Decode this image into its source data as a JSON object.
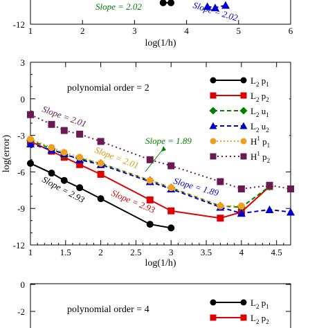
{
  "chart_data": [
    {
      "type": "line",
      "panel": "top (partially visible)",
      "xlabel": "log(1/h)",
      "xlim": [
        1,
        6
      ],
      "x_ticks": [
        "1",
        "2",
        "3",
        "4",
        "5",
        "6"
      ],
      "y_ticks": [
        "-12"
      ],
      "annotations": [
        {
          "text": "Slope = 2.02",
          "color": "#008000"
        },
        {
          "text": "Slope = 2.02",
          "color": "#0000cc"
        }
      ],
      "series": [
        {
          "color": "#000000",
          "x": [
            3.55,
            3.7
          ],
          "y": [
            -10.2,
            -10.2
          ]
        },
        {
          "color": "#0000cc",
          "x": [
            4.4,
            4.55,
            4.75
          ],
          "y": [
            -10.5,
            -10.6,
            -10.4
          ]
        }
      ]
    },
    {
      "type": "line",
      "panel": "middle",
      "title": "polynomial order = 2",
      "xlabel": "log(1/h)",
      "ylabel": "log(error)",
      "xlim": [
        1,
        4.7
      ],
      "ylim": [
        -12,
        3
      ],
      "x_ticks": [
        "1",
        "1.5",
        "2",
        "2.5",
        "3",
        "3.5",
        "4",
        "4.5"
      ],
      "y_ticks": [
        "3",
        "0",
        "-3",
        "-6",
        "-9",
        "-12"
      ],
      "legend_position": "right",
      "legend": [
        {
          "base": "L",
          "sub": "2",
          "mid": " p",
          "sup": "",
          "sub2": "1"
        },
        {
          "base": "L",
          "sub": "2",
          "mid": " p",
          "sup": "",
          "sub2": "2"
        },
        {
          "base": "L",
          "sub": "2",
          "mid": " u",
          "sup": "",
          "sub2": "1"
        },
        {
          "base": "L",
          "sub": "2",
          "mid": " u",
          "sup": "",
          "sub2": "2"
        },
        {
          "base": "H",
          "sub": "",
          "mid": " p",
          "sup": "1",
          "sub2": "1"
        },
        {
          "base": "H",
          "sub": "",
          "mid": " p",
          "sup": "1",
          "sub2": "2"
        }
      ],
      "annotations": [
        {
          "text": "Slope = 2.01",
          "color": "#5a1a4a"
        },
        {
          "text": "Slope = 2.93",
          "color": "#000000"
        },
        {
          "text": "Slope = 1.89",
          "color": "#008000"
        },
        {
          "text": "Slope = 2.01",
          "color": "#d49a00"
        },
        {
          "text": "Slope = 2.93",
          "color": "#cc0000"
        },
        {
          "text": "Slope = 1.89",
          "color": "#0000cc"
        }
      ],
      "series": [
        {
          "name": "L2 p1",
          "color": "#000000",
          "marker": "circle",
          "dash": "",
          "x": [
            1.0,
            1.3,
            1.48,
            1.7,
            2.0,
            2.7,
            3.0
          ],
          "y": [
            -5.3,
            -6.1,
            -6.7,
            -7.3,
            -8.2,
            -10.3,
            -10.6
          ]
        },
        {
          "name": "L2 p2",
          "color": "#dd0000",
          "marker": "square",
          "dash": "",
          "x": [
            1.0,
            1.3,
            1.48,
            1.7,
            2.0,
            2.7,
            3.0,
            3.7,
            4.0,
            4.4
          ],
          "y": [
            -3.5,
            -4.3,
            -4.8,
            -5.4,
            -6.2,
            -8.3,
            -9.2,
            -9.8,
            -9.3,
            -7.2
          ]
        },
        {
          "name": "L2 u1",
          "color": "#008000",
          "marker": "diamond",
          "dash": "6,4",
          "x": [
            1.0,
            1.3,
            1.48,
            1.7,
            2.0,
            2.7,
            3.0,
            3.7,
            4.0,
            4.4
          ],
          "y": [
            -3.4,
            -4.1,
            -4.6,
            -4.9,
            -5.3,
            -6.7,
            -7.3,
            -8.8,
            -8.9,
            -7.2
          ]
        },
        {
          "name": "L2 u2",
          "color": "#0000cc",
          "marker": "triangle",
          "dash": "6,4",
          "x": [
            1.0,
            1.3,
            1.48,
            1.7,
            2.0,
            2.7,
            3.0,
            3.7,
            4.0,
            4.4,
            4.7
          ],
          "y": [
            -3.7,
            -4.2,
            -4.5,
            -5.0,
            -5.4,
            -6.8,
            -7.4,
            -8.9,
            -9.4,
            -9.1,
            -9.3
          ]
        },
        {
          "name": "H1 p1",
          "color": "#f0a020",
          "marker": "circle",
          "dash": "2,3",
          "x": [
            1.0,
            1.3,
            1.48,
            1.7,
            2.0,
            2.7,
            3.0,
            3.7,
            4.0
          ],
          "y": [
            -3.3,
            -4.0,
            -4.4,
            -4.8,
            -5.3,
            -6.7,
            -7.3,
            -8.8,
            -8.8
          ]
        },
        {
          "name": "H1 p2",
          "color": "#6a1a50",
          "marker": "square",
          "dash": "2,4",
          "x": [
            1.0,
            1.3,
            1.48,
            1.7,
            2.0,
            2.7,
            3.0,
            3.7,
            4.0,
            4.4,
            4.7
          ],
          "y": [
            -1.3,
            -2.1,
            -2.6,
            -2.9,
            -3.5,
            -5.0,
            -5.5,
            -6.8,
            -7.4,
            -7.1,
            -7.4
          ]
        }
      ]
    },
    {
      "type": "line",
      "panel": "bottom (partially visible)",
      "title": "polynomial order = 4",
      "y_ticks": [
        "0",
        "-2"
      ],
      "legend": [
        {
          "base": "L",
          "sub": "2",
          "mid": " p",
          "sup": "",
          "sub2": "1"
        },
        {
          "base": "L",
          "sub": "2",
          "mid": " p",
          "sup": "",
          "sub2": "2"
        },
        {
          "base": "L",
          "sub": "",
          "mid": "",
          "sup": "",
          "sub2": ""
        }
      ],
      "series": []
    }
  ]
}
